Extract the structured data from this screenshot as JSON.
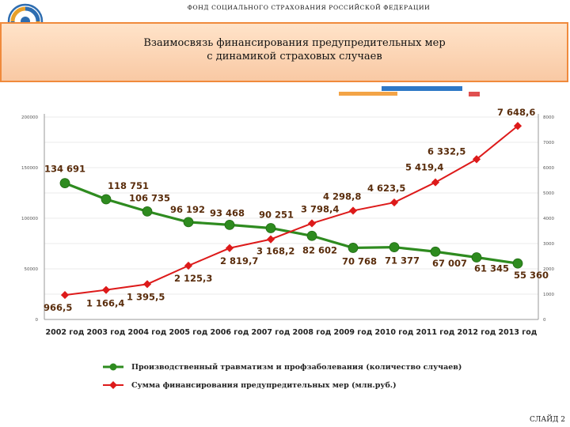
{
  "header": {
    "org": "ФОНД СОЦИАЛЬНОГО СТРАХОВАНИЯ РОССИЙСКОЙ ФЕДЕРАЦИИ",
    "title_line1": "Взаимосвязь финансирования предупредительных мер",
    "title_line2": "с динамикой страховых случаев"
  },
  "colors": {
    "green": "#2e8b1f",
    "red": "#dd1a1a",
    "orange": "#f08a3c",
    "blue": "#2e78c6",
    "label": "#5a2d0c"
  },
  "chart_data": {
    "type": "line",
    "categories": [
      "2002 год",
      "2003 год",
      "2004 год",
      "2005 год",
      "2006 год",
      "2007 год",
      "2008 год",
      "2009 год",
      "2010 год",
      "2011 год",
      "2012 год",
      "2013 год"
    ],
    "series": [
      {
        "name": "Производственный травматизм и профзаболевания (количество случаев)",
        "axis": "left",
        "values": [
          134691,
          118751,
          106735,
          96192,
          93468,
          90251,
          82602,
          70768,
          71377,
          67007,
          61345,
          55360
        ],
        "labels": [
          "134 691",
          "118 751",
          "106 735",
          "96 192",
          "93 468",
          "90 251",
          "82 602",
          "70 768",
          "71 377",
          "67 007",
          "61 345",
          "55 360"
        ]
      },
      {
        "name": "Сумма финансирования предупредительных мер (млн.руб.)",
        "axis": "right",
        "values": [
          966.5,
          1166.4,
          1395.5,
          2125.3,
          2819.7,
          3168.2,
          3798.4,
          4298.8,
          4623.5,
          5419.4,
          6332.5,
          7648.6
        ],
        "labels": [
          "966,5",
          "1 166,4",
          "1 395,5",
          "2 125,3",
          "2 819,7",
          "3 168,2",
          "3 798,4",
          "4 298,8",
          "4 623,5",
          "5 419,4",
          "6 332,5",
          "7 648,6"
        ]
      }
    ],
    "y_left": {
      "min": 0,
      "max": 200000,
      "ticks": [
        0,
        50000,
        100000,
        150000,
        200000
      ],
      "tick_labels": [
        "0",
        "50000",
        "100000",
        "150000",
        "200000"
      ]
    },
    "y_right": {
      "min": 0,
      "max": 8000,
      "ticks": [
        0,
        1000,
        2000,
        3000,
        4000,
        5000,
        6000,
        7000,
        8000
      ],
      "tick_labels": [
        "0",
        "1000",
        "2000",
        "3000",
        "4000",
        "5000",
        "6000",
        "7000",
        "8000"
      ]
    }
  },
  "slide_number": "СЛАЙД 2"
}
